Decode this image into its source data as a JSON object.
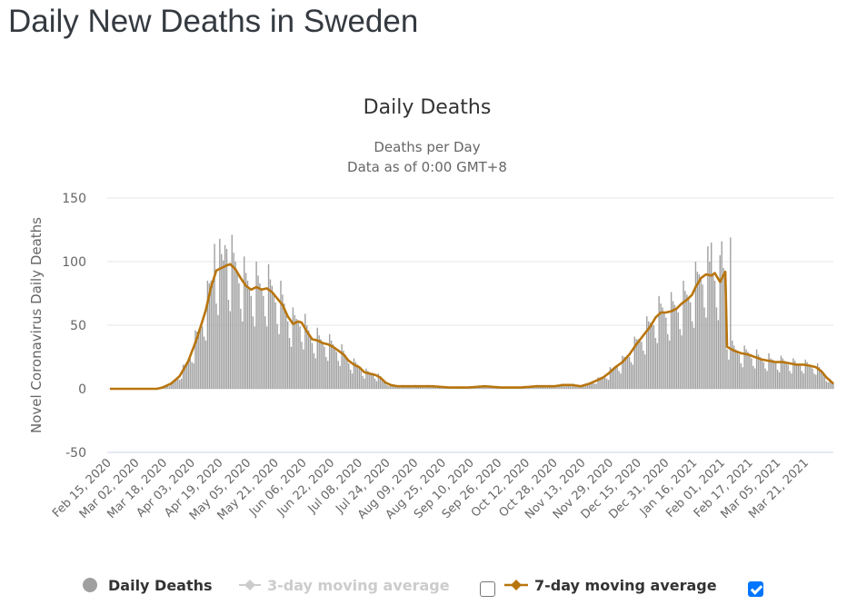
{
  "page": {
    "title": "Daily New Deaths in Sweden"
  },
  "colors": {
    "bars": "#a0a0a0",
    "line7": "#b8750e",
    "line3": "#cccccc",
    "grid": "#e6e6e6",
    "zero_axis": "#ccd6eb",
    "checkbox_on": "#0075ff"
  },
  "legend": {
    "items": [
      {
        "label": "Daily Deaths",
        "icon": "circle-marker-icon",
        "enabled": true
      },
      {
        "label": "3-day moving average",
        "icon": "line-diamond-marker-icon",
        "enabled": false,
        "checkbox_checked": false
      },
      {
        "label": "7-day moving average",
        "icon": "line-diamond-marker-icon",
        "enabled": true,
        "checkbox_checked": true
      }
    ]
  },
  "chart_data": {
    "type": "bar",
    "title": "Daily Deaths",
    "subtitle_lines": [
      "Deaths per Day",
      "Data as of 0:00 GMT+8"
    ],
    "xlabel": "",
    "ylabel": "Novel Coronavirus Daily Deaths",
    "ylim": [
      -50,
      150
    ],
    "yticks": [
      -50,
      0,
      50,
      100,
      150
    ],
    "grid": true,
    "legend_position": "bottom",
    "x_start": "Feb 15, 2020",
    "x_tick_labels": [
      "Feb 15, 2020",
      "Mar 02, 2020",
      "Mar 18, 2020",
      "Apr 03, 2020",
      "Apr 19, 2020",
      "May 05, 2020",
      "May 21, 2020",
      "Jun 06, 2020",
      "Jun 22, 2020",
      "Jul 08, 2020",
      "Jul 24, 2020",
      "Aug 09, 2020",
      "Aug 25, 2020",
      "Sep 10, 2020",
      "Sep 26, 2020",
      "Oct 12, 2020",
      "Oct 28, 2020",
      "Nov 13, 2020",
      "Nov 29, 2020",
      "Dec 15, 2020",
      "Dec 31, 2020",
      "Jan 16, 2021",
      "Feb 01, 2021",
      "Feb 17, 2021",
      "Mar 05, 2021",
      "Mar 21, 2021"
    ],
    "x_tick_interval_days": 16,
    "num_days": 415,
    "seven_day_avg_keypoints": [
      [
        0,
        0
      ],
      [
        27,
        0
      ],
      [
        30,
        1
      ],
      [
        35,
        4
      ],
      [
        40,
        10
      ],
      [
        45,
        22
      ],
      [
        50,
        40
      ],
      [
        55,
        62
      ],
      [
        58,
        80
      ],
      [
        61,
        93
      ],
      [
        64,
        95
      ],
      [
        67,
        97
      ],
      [
        69,
        98
      ],
      [
        72,
        94
      ],
      [
        75,
        87
      ],
      [
        78,
        81
      ],
      [
        81,
        78
      ],
      [
        84,
        80
      ],
      [
        87,
        78
      ],
      [
        90,
        79
      ],
      [
        93,
        76
      ],
      [
        96,
        71
      ],
      [
        99,
        66
      ],
      [
        102,
        57
      ],
      [
        105,
        51
      ],
      [
        108,
        53
      ],
      [
        110,
        52
      ],
      [
        113,
        45
      ],
      [
        116,
        39
      ],
      [
        119,
        38
      ],
      [
        122,
        36
      ],
      [
        125,
        35
      ],
      [
        128,
        33
      ],
      [
        131,
        30
      ],
      [
        134,
        27
      ],
      [
        137,
        22
      ],
      [
        140,
        19
      ],
      [
        143,
        17
      ],
      [
        146,
        13
      ],
      [
        149,
        12
      ],
      [
        152,
        11
      ],
      [
        155,
        9
      ],
      [
        158,
        5
      ],
      [
        161,
        3
      ],
      [
        165,
        2
      ],
      [
        175,
        2
      ],
      [
        185,
        2
      ],
      [
        195,
        1
      ],
      [
        205,
        1
      ],
      [
        215,
        2
      ],
      [
        225,
        1
      ],
      [
        235,
        1
      ],
      [
        245,
        2
      ],
      [
        250,
        2
      ],
      [
        255,
        2
      ],
      [
        260,
        3
      ],
      [
        265,
        3
      ],
      [
        270,
        2
      ],
      [
        275,
        4
      ],
      [
        280,
        7
      ],
      [
        283,
        9
      ],
      [
        286,
        12
      ],
      [
        290,
        17
      ],
      [
        294,
        21
      ],
      [
        298,
        27
      ],
      [
        302,
        35
      ],
      [
        306,
        42
      ],
      [
        310,
        49
      ],
      [
        313,
        56
      ],
      [
        316,
        60
      ],
      [
        319,
        60
      ],
      [
        322,
        61
      ],
      [
        325,
        63
      ],
      [
        328,
        67
      ],
      [
        331,
        70
      ],
      [
        334,
        74
      ],
      [
        336,
        80
      ],
      [
        339,
        87
      ],
      [
        342,
        90
      ],
      [
        345,
        89
      ],
      [
        347,
        91
      ],
      [
        350,
        84
      ],
      [
        353,
        92
      ],
      [
        355,
        96
      ],
      [
        357,
        98
      ],
      [
        359,
        96
      ],
      [
        361,
        97
      ],
      [
        363,
        94
      ],
      [
        365,
        91
      ],
      [
        367,
        92
      ],
      [
        370,
        93
      ],
      [
        373,
        91
      ],
      [
        375,
        93
      ],
      [
        378,
        91
      ],
      [
        381,
        86
      ],
      [
        384,
        80
      ],
      [
        387,
        71
      ],
      [
        389,
        64
      ],
      [
        392,
        55
      ],
      [
        395,
        51
      ],
      [
        398,
        46
      ],
      [
        401,
        40
      ],
      [
        404,
        35
      ],
      [
        407,
        30
      ],
      [
        410,
        27
      ],
      [
        413,
        24
      ],
      [
        415,
        23
      ]
    ],
    "seven_day_avg_tail_keypoints": [
      [
        354,
        33
      ],
      [
        358,
        30
      ],
      [
        362,
        28
      ],
      [
        366,
        27
      ],
      [
        370,
        25
      ],
      [
        374,
        23
      ],
      [
        378,
        22
      ],
      [
        382,
        21
      ],
      [
        386,
        21
      ],
      [
        390,
        20
      ],
      [
        394,
        19
      ],
      [
        398,
        19
      ],
      [
        402,
        18
      ],
      [
        405,
        17
      ],
      [
        408,
        14
      ],
      [
        411,
        9
      ],
      [
        415,
        4
      ]
    ],
    "daily_deaths_weekly_pattern": [
      1.25,
      1.12,
      1.06,
      1.0,
      0.93,
      0.72,
      0.62
    ],
    "daily_deaths_spikes": [
      [
        60,
        114
      ],
      [
        66,
        113
      ],
      [
        67,
        110
      ],
      [
        345,
        115
      ],
      [
        351,
        116
      ],
      [
        356,
        119
      ]
    ],
    "series": [
      {
        "name": "Daily Deaths",
        "kind": "bar"
      },
      {
        "name": "3-day moving average",
        "kind": "line",
        "hidden": true
      },
      {
        "name": "7-day moving average",
        "kind": "line"
      }
    ]
  }
}
